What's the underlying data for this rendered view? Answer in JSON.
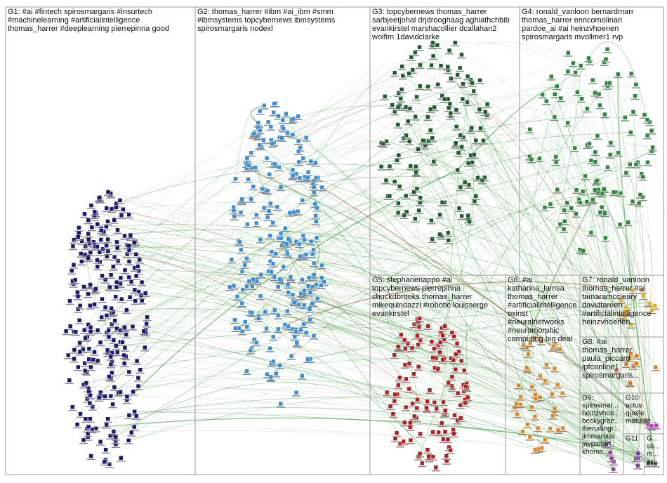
{
  "groups": [
    {
      "lines": [
        "G1: #ai #fintech spirosmargaris #insurtech",
        "#machinelearning #artificialintelligence",
        "thomas_harrer #deeplearning pierrepinna good"
      ]
    },
    {
      "lines": [
        "G2: thomas_harrer #ibm #ai_ibm #smm",
        "#ibmsystems topcybernews ibmsystems",
        "spirosmargaris nodexl"
      ]
    },
    {
      "lines": [
        "G3: topcybernews thomas_harrer",
        "sarbjeetjohal drjdrooghaag aghiathchbib",
        "evankirstel marshacollier dcallahan2",
        "woifim 1davidclarke"
      ]
    },
    {
      "lines": [
        "G4: ronald_vanloon bernardmarr",
        "thomas_harrer enricomolinari",
        "pardoe_ai #ai heinzvhoenen",
        "spirosmargaris mvollmer1 rvp"
      ]
    },
    {
      "lines": [
        "G5: stephanenappo #ai",
        "topcybernews pierrepinna",
        "chuckdbrooks thomas_harrer",
        "mikequindazzi #robotic louisserge",
        "evankirstel"
      ]
    },
    {
      "lines": [
        "G6: #ai",
        "katharina_lamsa",
        "thomas_harrer",
        "#artificialintelligence",
        "oxinst",
        "#neuralnetworks",
        "#neuromorphic",
        "computing big deal"
      ]
    },
    {
      "lines": [
        "G7: ronald_vanloon",
        "thomas_harrer #ai",
        "tamaramccleary",
        "davidtareen",
        "#artificialintelligence",
        "heinzvhoenen..."
      ]
    },
    {
      "lines": [
        "G8: #ai",
        "thomas_harrer",
        "paula_piccard",
        "ipfconline1",
        "spirosmargaris..."
      ]
    },
    {
      "lines": [
        "G9:",
        "spirosmar...",
        "heinzvhoe...",
        "beckygrae...",
        "therudingr...",
        "jimmarous",
        "jaypalter",
        "khoros..."
      ]
    },
    {
      "lines": [
        "G10:",
        "actus",
        "quelle",
        "maturité..."
      ]
    },
    {
      "lines": [
        "G11"
      ]
    },
    {
      "lines": [
        "G...",
        "se...",
        "m...",
        "ac..."
      ]
    }
  ]
}
